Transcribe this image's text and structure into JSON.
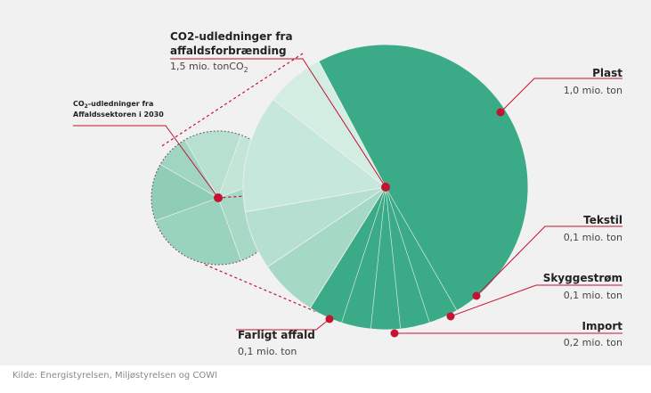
{
  "chart_data": {
    "type": "pie",
    "colors": {
      "main": "#3aab86",
      "light": [
        "#a6d8c6",
        "#b5dfd0",
        "#c6e7db",
        "#d3ede3",
        "#cfebe0"
      ],
      "sector": [
        "#b7e0d1",
        "#c2e5d8",
        "#a8d9c6",
        "#9ad3bd",
        "#8fcdb6",
        "#a0d6c1"
      ],
      "accent": "#c4122f",
      "leader": "#c4122f",
      "panel": "#f1f1f1"
    },
    "main_pie": {
      "title_lines": [
        "CO2-udledninger fra",
        "affaldsforbrænding"
      ],
      "total_value": "1,5 mio. tonCO",
      "total_value_subscript": "2",
      "slices": [
        {
          "name": "Plast",
          "value": 1.0,
          "value_label": "1,0 mio. ton"
        },
        {
          "name": "Tekstil",
          "value": 0.1,
          "value_label": "0,1 mio. ton"
        },
        {
          "name": "Skyggestrøm",
          "value": 0.1,
          "value_label": "0,1 mio. ton"
        },
        {
          "name": "Import",
          "value": 0.2,
          "value_label": "0,2 mio. ton"
        },
        {
          "name": "Farligt affald",
          "value": 0.1,
          "value_label": "0,1 mio. ton"
        }
      ]
    },
    "sector_pie": {
      "title_lines": [
        "CO",
        "-udledninger fra",
        "Affaldssektoren i 2030"
      ],
      "title_subscript": "2"
    }
  },
  "source": "Kilde: Energistyrelsen, Miljøstyrelsen og COWI"
}
